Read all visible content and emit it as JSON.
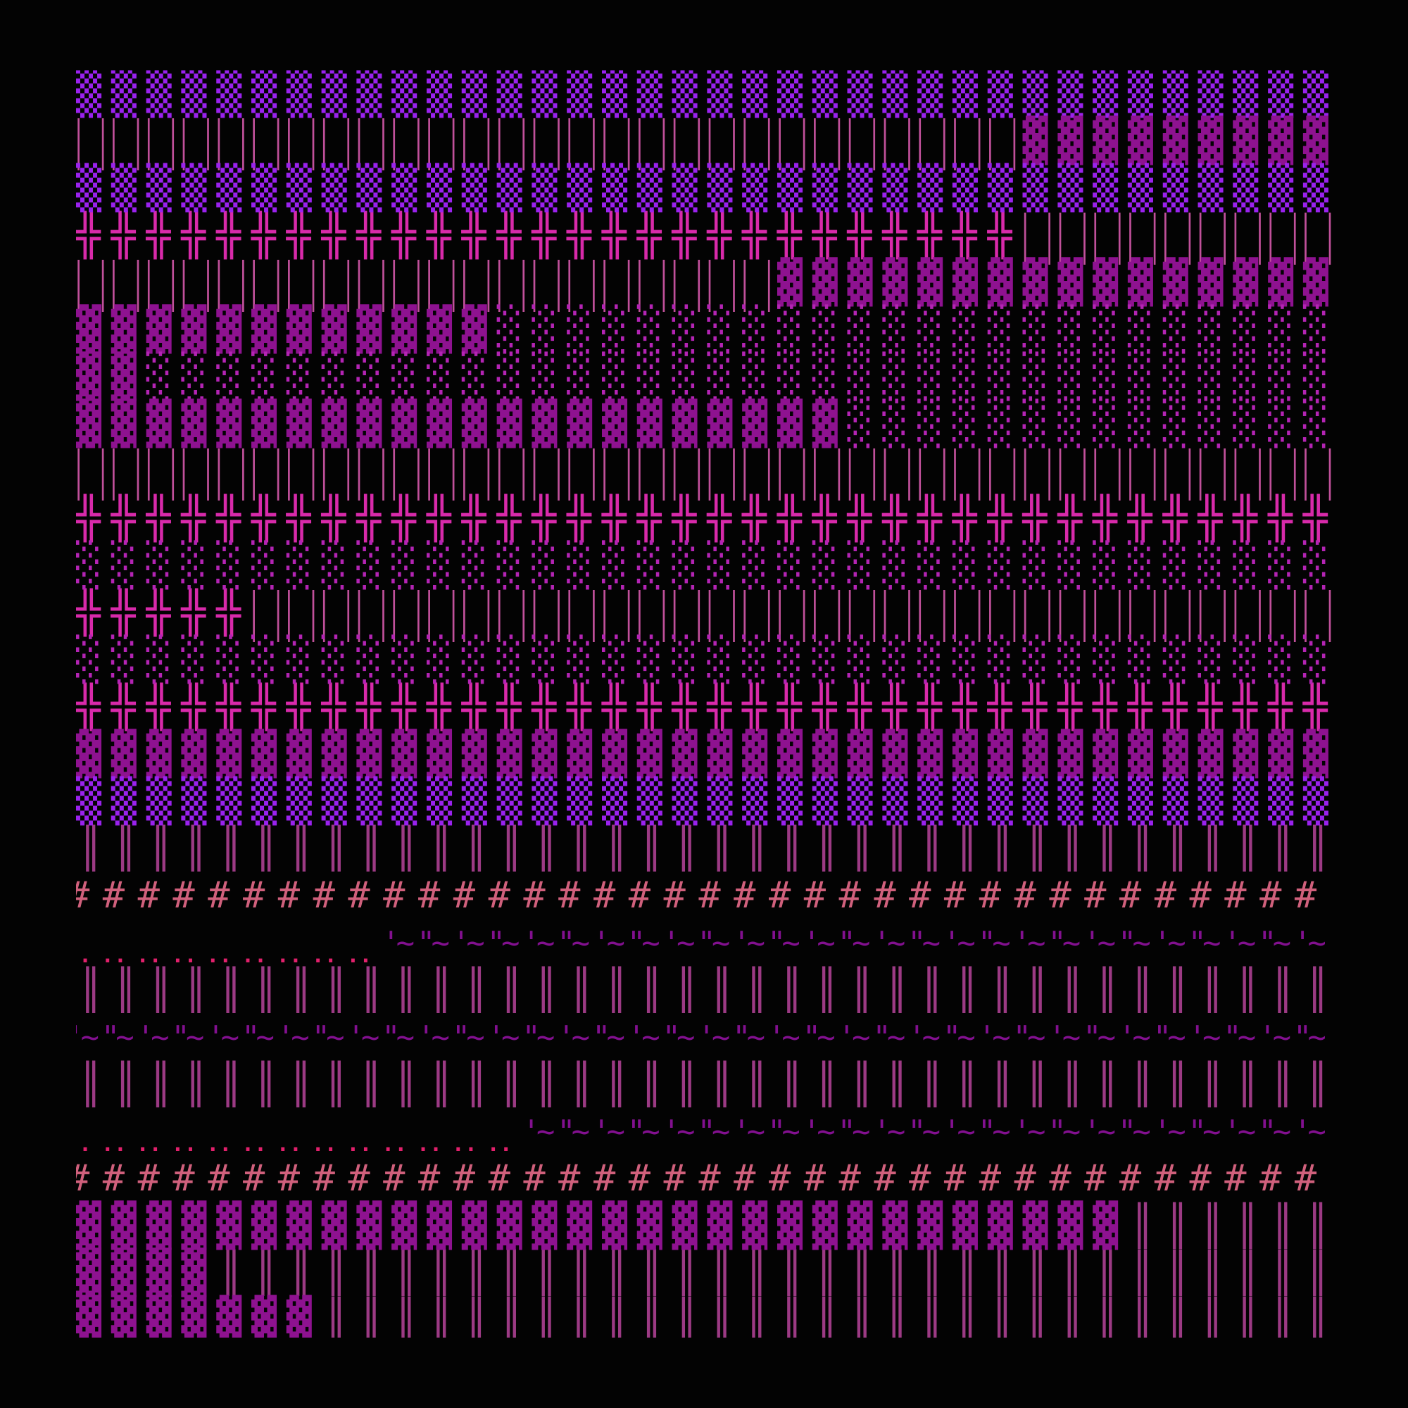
{
  "columns": 36,
  "glyphs": {
    "medium": {
      "char": "▒",
      "color": "#9a22ee",
      "cls": "g-shade"
    },
    "dark": {
      "char": "▓",
      "color": "#8e1290",
      "cls": "g-shade"
    },
    "light": {
      "char": "░",
      "color": "#b424b4",
      "cls": "g-shade"
    },
    "bars": {
      "char": "| |",
      "color": "#c0509a",
      "cls": "g-bars"
    },
    "cross": {
      "char": "╬",
      "color": "#d82aaa",
      "cls": "g-cross"
    },
    "double": {
      "char": "║",
      "color": "#9c3a84",
      "cls": "g-dbl"
    },
    "hash": {
      "char": "#",
      "color": "#d0607c",
      "cls": "g-hash"
    },
    "dots": {
      "char": "..",
      "color": "#e2206c",
      "cls": "g-dots"
    },
    "wave": {
      "char": "'~",
      "color": "#82108f",
      "cls": "g-wave"
    }
  },
  "rows": [
    [
      [
        "medium",
        36
      ]
    ],
    [
      [
        "bars",
        27
      ],
      [
        "dark",
        9
      ]
    ],
    [
      [
        "medium",
        36
      ]
    ],
    [
      [
        "cross",
        27
      ],
      [
        "bars",
        9
      ]
    ],
    [
      [
        "bars",
        20
      ],
      [
        "dark",
        16
      ]
    ],
    [
      [
        "dark",
        12
      ],
      [
        "light",
        24
      ]
    ],
    [
      [
        "dark",
        2
      ],
      [
        "light",
        34
      ]
    ],
    [
      [
        "dark",
        22
      ],
      [
        "light",
        14
      ]
    ],
    [
      [
        "bars",
        36
      ]
    ],
    [
      [
        "cross",
        36
      ]
    ],
    [
      [
        "light",
        36
      ]
    ],
    [
      [
        "cross",
        5
      ],
      [
        "bars",
        31
      ]
    ],
    [
      [
        "light",
        36
      ]
    ],
    [
      [
        "cross",
        36
      ]
    ],
    [
      [
        "dark",
        36
      ]
    ],
    [
      [
        "medium",
        36
      ]
    ],
    [
      [
        "double",
        36
      ]
    ],
    [
      [
        "hash",
        36
      ]
    ],
    [
      [
        "dots",
        9
      ],
      [
        "wave",
        27
      ]
    ],
    [
      [
        "double",
        36
      ]
    ],
    [
      [
        "wave",
        36
      ]
    ],
    [
      [
        "double",
        36
      ]
    ],
    [
      [
        "dots",
        13
      ],
      [
        "wave",
        23
      ]
    ],
    [
      [
        "hash",
        36
      ]
    ],
    [
      [
        "dark",
        30
      ],
      [
        "double",
        6
      ]
    ],
    [
      [
        "dark",
        4
      ],
      [
        "double",
        32
      ]
    ],
    [
      [
        "dark",
        7
      ],
      [
        "double",
        29
      ]
    ]
  ]
}
